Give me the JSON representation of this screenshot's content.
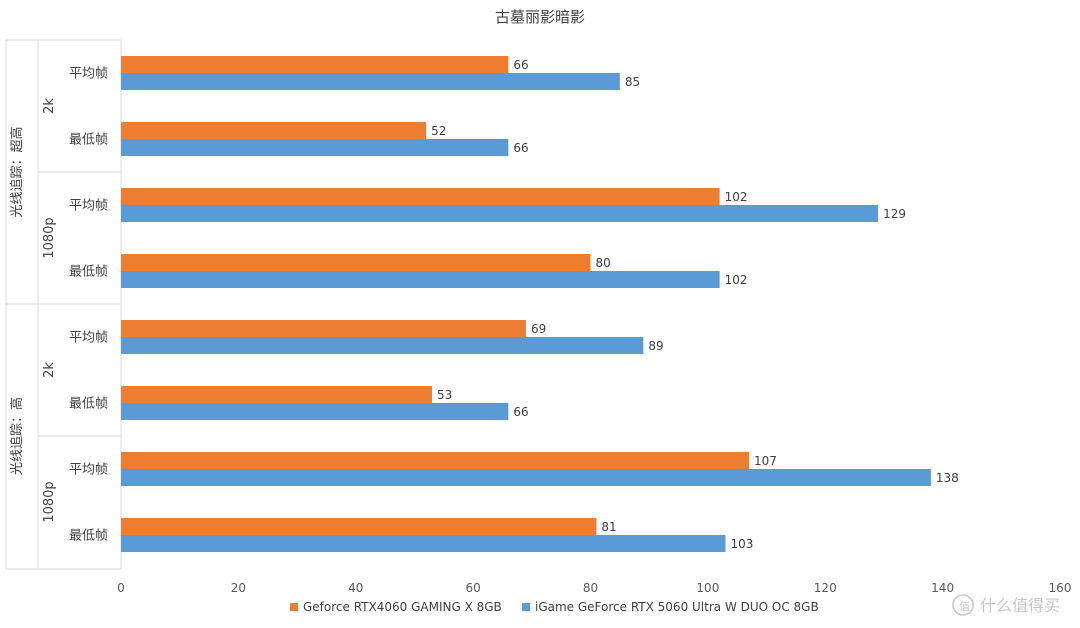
{
  "chart_data": {
    "type": "bar",
    "orientation": "horizontal",
    "title": "古墓丽影暗影",
    "xlim": [
      0,
      160
    ],
    "xticks": [
      0,
      20,
      40,
      60,
      80,
      100,
      120,
      140,
      160
    ],
    "groups": [
      {
        "label": "光线追踪：超高",
        "subgroups": [
          {
            "label": "2k",
            "categories": [
              "平均帧",
              "最低帧"
            ]
          },
          {
            "label": "1080p",
            "categories": [
              "平均帧",
              "最低帧"
            ]
          }
        ]
      },
      {
        "label": "光线追踪：高",
        "subgroups": [
          {
            "label": "2k",
            "categories": [
              "平均帧",
              "最低帧"
            ]
          },
          {
            "label": "1080p",
            "categories": [
              "平均帧",
              "最低帧"
            ]
          }
        ]
      }
    ],
    "series": [
      {
        "name": "Geforce RTX4060 GAMING X 8GB",
        "color": "#ED7D31",
        "values": [
          66,
          52,
          102,
          80,
          69,
          53,
          107,
          81
        ]
      },
      {
        "name": "iGame GeForce RTX 5060 Ultra W DUO OC 8GB",
        "color": "#5B9BD5",
        "values": [
          85,
          66,
          129,
          102,
          89,
          66,
          138,
          103
        ]
      }
    ],
    "legend_position": "bottom",
    "grid": false,
    "data_labels": true
  },
  "watermark": "什么值得买"
}
